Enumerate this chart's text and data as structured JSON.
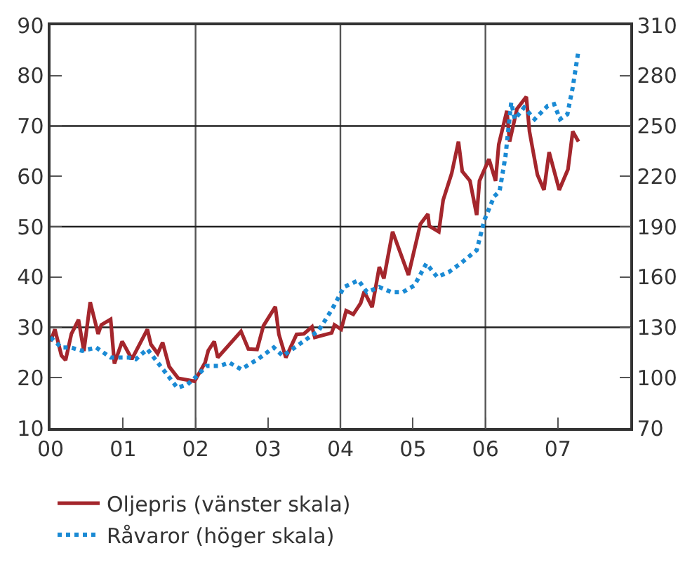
{
  "chart_data": {
    "type": "line",
    "xlim": [
      "2000-01-01",
      "2008-01-01"
    ],
    "xticks": [
      {
        "value": "2000",
        "label": "00"
      },
      {
        "value": "2001",
        "label": "01"
      },
      {
        "value": "2002",
        "label": "02"
      },
      {
        "value": "2003",
        "label": "03"
      },
      {
        "value": "2004",
        "label": "04"
      },
      {
        "value": "2005",
        "label": "05"
      },
      {
        "value": "2006",
        "label": "06"
      },
      {
        "value": "2007",
        "label": "07"
      }
    ],
    "ylim": [
      10,
      90
    ],
    "yticks": [
      10,
      20,
      30,
      40,
      50,
      60,
      70,
      80,
      90
    ],
    "y2lim": [
      70,
      310
    ],
    "y2ticks": [
      70,
      100,
      130,
      160,
      190,
      220,
      250,
      280,
      310
    ],
    "grid": true,
    "legend": "bottom",
    "marker": "none",
    "series": [
      {
        "name": "Oljepris (vänster skala)",
        "color": "#a4262c",
        "line_style": "solid",
        "x": [
          "2000-01-01",
          "2000-01-23",
          "2000-02-25",
          "2000-03-17",
          "2000-04-15",
          "2000-05-21",
          "2000-06-17",
          "2000-07-19",
          "2000-08-28",
          "2000-09-13",
          "2000-10-30",
          "2000-11-18",
          "2000-12-27",
          "2001-02-14",
          "2001-05-03",
          "2001-05-21",
          "2001-06-24",
          "2001-07-19",
          "2001-08-21",
          "2001-10-05",
          "2001-12-27",
          "2002-02-18",
          "2002-03-06",
          "2002-04-05",
          "2002-04-23",
          "2002-08-18",
          "2002-09-24",
          "2002-11-07",
          "2002-12-09",
          "2003-02-07",
          "2003-02-25",
          "2003-04-01",
          "2003-05-25",
          "2003-07-01",
          "2003-08-11",
          "2003-08-25",
          "2003-11-18",
          "2003-12-02",
          "2004-01-05",
          "2004-01-30",
          "2004-03-06",
          "2004-04-12",
          "2004-04-30",
          "2004-06-09",
          "2004-07-15",
          "2004-08-07",
          "2004-09-20",
          "2004-12-09",
          "2005-02-07",
          "2005-03-17",
          "2005-03-24",
          "2005-05-11",
          "2005-06-02",
          "2005-07-15",
          "2005-08-18",
          "2005-09-06",
          "2005-10-15",
          "2005-11-18",
          "2005-12-02",
          "2006-01-19",
          "2006-02-21",
          "2006-03-09",
          "2006-04-19",
          "2006-05-03",
          "2006-06-09",
          "2006-07-26",
          "2006-08-11",
          "2006-09-20",
          "2006-10-23",
          "2006-11-18",
          "2007-01-08",
          "2007-02-21",
          "2007-03-17",
          "2007-04-15"
        ],
        "values": [
          27.2,
          29.6,
          24.4,
          23.5,
          28.7,
          31.5,
          25.3,
          35.0,
          28.7,
          30.5,
          31.6,
          22.8,
          27.2,
          23.7,
          29.6,
          26.6,
          24.8,
          27.0,
          22.2,
          19.9,
          19.3,
          23.0,
          25.4,
          27.2,
          24.0,
          29.2,
          25.7,
          25.6,
          30.3,
          34.1,
          28.6,
          24.0,
          28.6,
          28.7,
          30.1,
          28.0,
          28.9,
          30.5,
          29.6,
          33.3,
          32.6,
          34.8,
          37.1,
          34.0,
          42.0,
          39.7,
          49.0,
          40.4,
          50.5,
          52.5,
          50.1,
          49.0,
          55.3,
          60.6,
          66.9,
          61.0,
          59.1,
          52.3,
          59.1,
          63.4,
          59.1,
          66.3,
          73.0,
          66.9,
          73.4,
          75.8,
          68.9,
          60.3,
          57.3,
          64.8,
          57.3,
          61.4,
          68.9,
          66.9
        ]
      },
      {
        "name": "Råvaror (höger skala)",
        "color": "#1a8ad4",
        "line_style": "dotted",
        "axis": "y2",
        "x": [
          "2000-01-01",
          "2000-02-25",
          "2000-04-12",
          "2000-06-09",
          "2000-08-18",
          "2000-10-30",
          "2001-01-30",
          "2001-03-06",
          "2001-05-03",
          "2001-07-01",
          "2001-10-01",
          "2001-11-21",
          "2002-01-08",
          "2002-02-25",
          "2002-05-03",
          "2002-06-20",
          "2002-08-18",
          "2002-11-11",
          "2003-01-30",
          "2003-03-17",
          "2003-06-09",
          "2003-09-13",
          "2003-11-21",
          "2004-01-19",
          "2004-04-01",
          "2004-05-14",
          "2004-07-15",
          "2004-09-13",
          "2004-11-11",
          "2005-01-08",
          "2005-03-09",
          "2005-05-03",
          "2005-07-01",
          "2005-08-28",
          "2005-11-18",
          "2005-12-27",
          "2006-02-14",
          "2006-03-13",
          "2006-04-12",
          "2006-05-11",
          "2006-05-29",
          "2006-07-15",
          "2006-09-06",
          "2006-11-11",
          "2006-12-13",
          "2007-01-12",
          "2007-02-18",
          "2007-03-17",
          "2007-04-15"
        ],
        "values": [
          124,
          118,
          118,
          116,
          118,
          112,
          112,
          111,
          117,
          108,
          94,
          96,
          101,
          107,
          107,
          109,
          105,
          111,
          118,
          113,
          120,
          128,
          141,
          154,
          158,
          151,
          154,
          151,
          151,
          155,
          168,
          160,
          163,
          168,
          176,
          194,
          208,
          211,
          232,
          264,
          254,
          261,
          254,
          262,
          263,
          254,
          257,
          273,
          295
        ]
      }
    ]
  }
}
